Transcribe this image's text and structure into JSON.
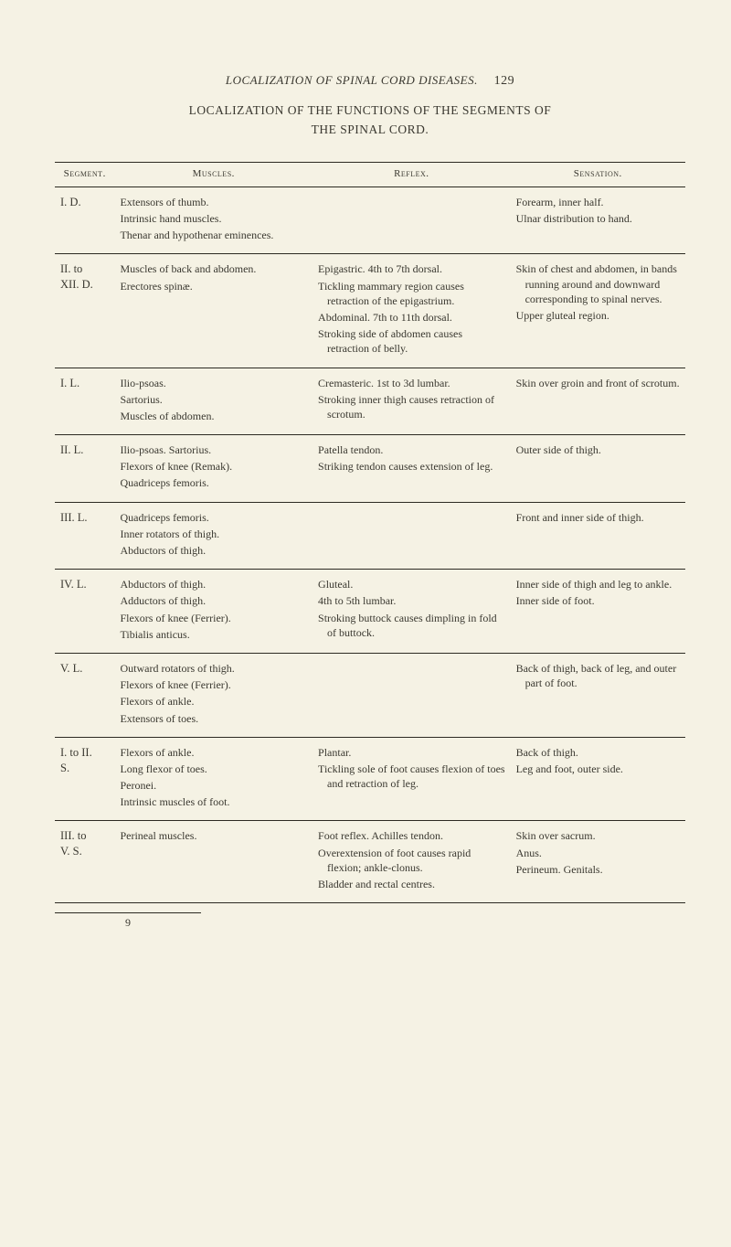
{
  "running_head": "LOCALIZATION OF SPINAL CORD DISEASES.",
  "page_number": "129",
  "title_line1": "LOCALIZATION OF THE FUNCTIONS OF THE SEGMENTS OF",
  "title_line2": "THE SPINAL CORD.",
  "columns": [
    "Segment.",
    "Muscles.",
    "Reflex.",
    "Sensation."
  ],
  "signature": "9",
  "colors": {
    "background": "#f5f2e4",
    "text": "#3a3830",
    "rule": "#2c2a22"
  },
  "rows": [
    {
      "segment": "I. D.",
      "muscles": [
        "Extensors of thumb.",
        "Intrinsic hand muscles.",
        "Thenar and hypothenar eminences."
      ],
      "reflex": [],
      "sensation": [
        "Forearm, inner half.",
        "Ulnar distribution to hand."
      ]
    },
    {
      "segment": "II. to\nXII. D.",
      "muscles": [
        "Muscles of back and abdomen.",
        "Erectores spinæ."
      ],
      "reflex": [
        "Epigastric. 4th to 7th dorsal.",
        "Tickling mammary region causes retraction of the epigastrium.",
        "Abdominal. 7th to 11th dorsal.",
        "Stroking side of abdomen causes retraction of belly."
      ],
      "sensation": [
        "Skin of chest and abdomen, in bands running around and downward corresponding to spinal nerves.",
        "Upper gluteal region."
      ]
    },
    {
      "segment": "I. L.",
      "muscles": [
        "Ilio-psoas.",
        "Sartorius.",
        "Muscles of abdomen."
      ],
      "reflex": [
        "Cremasteric. 1st to 3d lumbar.",
        "Stroking inner thigh causes retraction of scrotum."
      ],
      "sensation": [
        "Skin over groin and front of scrotum."
      ]
    },
    {
      "segment": "II. L.",
      "muscles": [
        "Ilio-psoas. Sartorius.",
        "Flexors of knee (Remak).",
        "Quadriceps femoris."
      ],
      "reflex": [
        "Patella tendon.",
        "Striking tendon causes extension of leg."
      ],
      "sensation": [
        "Outer side of thigh."
      ]
    },
    {
      "segment": "III. L.",
      "muscles": [
        "Quadriceps femoris.",
        "Inner rotators of thigh.",
        "Abductors of thigh."
      ],
      "reflex": [],
      "sensation": [
        "Front and inner side of thigh."
      ]
    },
    {
      "segment": "IV. L.",
      "muscles": [
        "Abductors of thigh.",
        "Adductors of thigh.",
        "Flexors of knee (Ferrier).",
        "Tibialis anticus."
      ],
      "reflex": [
        "Gluteal.",
        "4th to 5th lumbar.",
        "Stroking buttock causes dimpling in fold of buttock."
      ],
      "sensation": [
        "Inner side of thigh and leg to ankle.",
        "Inner side of foot."
      ]
    },
    {
      "segment": "V. L.",
      "muscles": [
        "Outward rotators of thigh.",
        "Flexors of knee (Ferrier).",
        "Flexors of ankle.",
        "Extensors of toes."
      ],
      "reflex": [],
      "sensation": [
        "Back of thigh, back of leg, and outer part of foot."
      ]
    },
    {
      "segment": "I. to II.\nS.",
      "muscles": [
        "Flexors of ankle.",
        "Long flexor of toes.",
        "Peronei.",
        "Intrinsic muscles of foot."
      ],
      "reflex": [
        "Plantar.",
        "Tickling sole of foot causes flexion of toes and retraction of leg."
      ],
      "sensation": [
        "Back of thigh.",
        "Leg and foot, outer side."
      ]
    },
    {
      "segment": "III. to\nV. S.",
      "muscles": [
        "Perineal muscles."
      ],
      "reflex": [
        "Foot reflex. Achilles tendon.",
        "Overextension of foot causes rapid flexion; ankle-clonus.",
        "Bladder and rectal centres."
      ],
      "sensation": [
        "Skin over sacrum.",
        "Anus.",
        "Perineum. Genitals."
      ]
    }
  ]
}
